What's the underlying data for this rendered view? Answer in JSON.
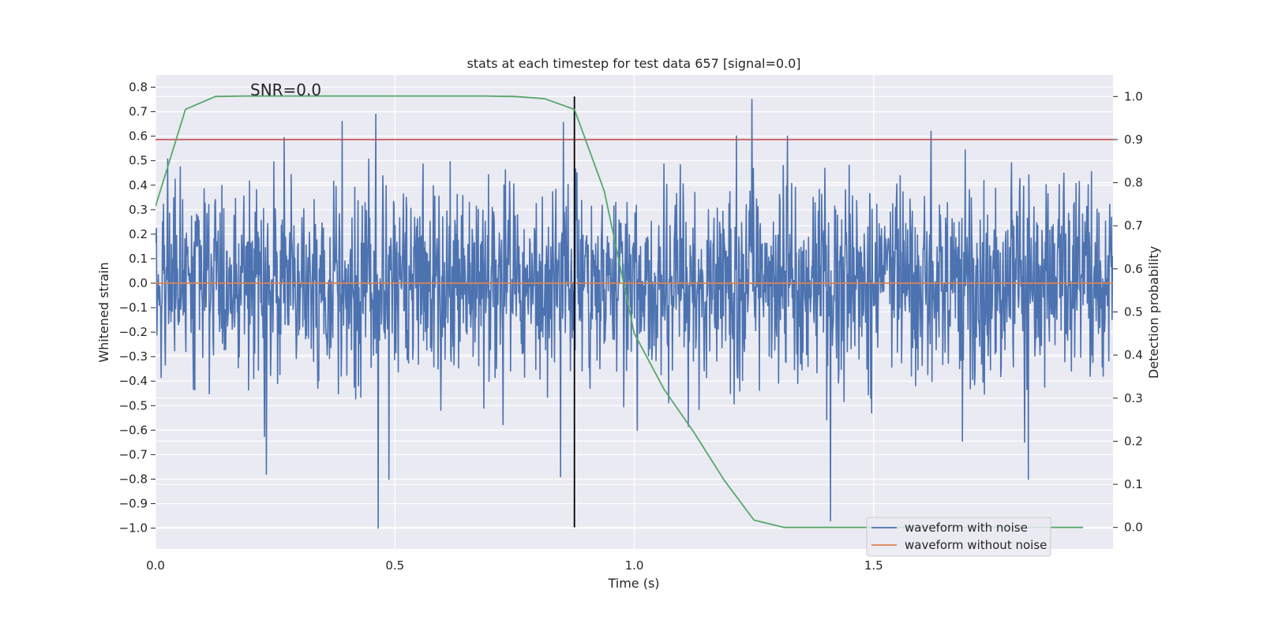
{
  "chart_data": {
    "type": "line",
    "title": "stats at each timestep for test data 657 [signal=0.0]",
    "xlabel": "Time (s)",
    "ylabel": "Whitened strain",
    "ylabel_right": "Detection probability",
    "annotation": "SNR=0.0",
    "xlim": [
      0.0,
      2.0
    ],
    "ylim": [
      -1.085,
      0.85
    ],
    "ylim_right": [
      -0.05,
      1.05
    ],
    "x_ticks": [
      0.0,
      0.5,
      1.0,
      1.5
    ],
    "x_tick_labels": [
      "0.0",
      "0.5",
      "1.0",
      "1.5"
    ],
    "y_ticks": [
      0.8,
      0.7,
      0.6,
      0.5,
      0.4,
      0.3,
      0.2,
      0.1,
      0.0,
      -0.1,
      -0.2,
      -0.3,
      -0.4,
      -0.5,
      -0.6,
      -0.7,
      -0.8,
      -0.9,
      -1.0
    ],
    "y_tick_labels": [
      "0.8",
      "0.7",
      "0.6",
      "0.5",
      "0.4",
      "0.3",
      "0.2",
      "0.1",
      "0.0",
      "−0.1",
      "−0.2",
      "−0.3",
      "−0.4",
      "−0.5",
      "−0.6",
      "−0.7",
      "−0.8",
      "−0.9",
      "−1.0"
    ],
    "y_right_ticks": [
      1.0,
      0.9,
      0.8,
      0.7,
      0.6,
      0.5,
      0.4,
      0.3,
      0.2,
      0.1,
      0.0
    ],
    "y_right_tick_labels": [
      "1.0",
      "0.9",
      "0.8",
      "0.7",
      "0.6",
      "0.5",
      "0.4",
      "0.3",
      "0.2",
      "0.1",
      "0.0"
    ],
    "grid": true,
    "legend_position": "lower-right",
    "noise_series": {
      "name": "waveform with noise",
      "color": "#4c72b0",
      "x_start": 0.0,
      "x_end": 2.0,
      "n_points": 2048,
      "seed": 657,
      "std": 0.2,
      "extremes": [
        {
          "x": 0.465,
          "y": -1.0
        },
        {
          "x": 0.46,
          "y": 0.69
        },
        {
          "x": 1.246,
          "y": 0.75
        },
        {
          "x": 1.41,
          "y": -0.97
        },
        {
          "x": 0.846,
          "y": -0.79
        },
        {
          "x": 0.232,
          "y": -0.78
        },
        {
          "x": 0.488,
          "y": -0.8
        },
        {
          "x": 1.823,
          "y": -0.8
        },
        {
          "x": 1.32,
          "y": 0.6
        },
        {
          "x": 0.39,
          "y": 0.66
        },
        {
          "x": 1.62,
          "y": 0.62
        }
      ]
    },
    "clean_series": {
      "name": "waveform without noise",
      "color": "#dd8452",
      "x": [
        0.0,
        2.0
      ],
      "y": [
        0.0,
        0.0
      ]
    },
    "probability_series": {
      "name": "",
      "color": "#55a868",
      "axis": "right",
      "x": [
        0.0,
        0.0625,
        0.125,
        0.1875,
        0.25,
        0.3125,
        0.375,
        0.4375,
        0.5,
        0.5625,
        0.625,
        0.6875,
        0.75,
        0.8125,
        0.875,
        0.9375,
        1.0,
        1.0625,
        1.125,
        1.1875,
        1.25,
        1.3125,
        1.375,
        1.4375,
        1.5,
        1.5625,
        1.625,
        1.6875,
        1.75,
        1.8125,
        1.875,
        1.9375
      ],
      "y": [
        0.745,
        0.97,
        1.0,
        1.001,
        1.001,
        1.001,
        1.001,
        1.001,
        1.001,
        1.001,
        1.001,
        1.001,
        1.0,
        0.995,
        0.97,
        0.78,
        0.45,
        0.32,
        0.22,
        0.11,
        0.017,
        0.0,
        0.0,
        0.0,
        0.0,
        0.0,
        0.0,
        0.0,
        0.0,
        0.0,
        0.0,
        0.0
      ]
    },
    "threshold_line": {
      "y_right": 0.9,
      "color": "#c44e52"
    },
    "time_marker": {
      "x": 0.875,
      "y_right_from": 0.0,
      "y_right_to": 1.0,
      "color": "#000000"
    }
  }
}
